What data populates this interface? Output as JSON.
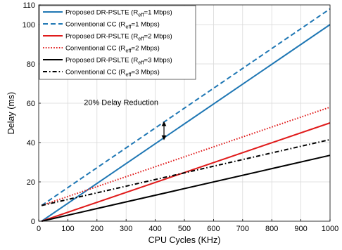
{
  "chart_data": {
    "type": "line",
    "xlabel": "CPU Cycles (KHz)",
    "ylabel": "Delay (ms)",
    "xlim": [
      0,
      1000
    ],
    "ylim": [
      0,
      110
    ],
    "xticks": [
      0,
      100,
      200,
      300,
      400,
      500,
      600,
      700,
      800,
      900,
      1000
    ],
    "yticks": [
      0,
      20,
      40,
      60,
      80,
      100,
      110
    ],
    "grid": true,
    "legend_position": "top-left",
    "series": [
      {
        "name": "Proposed DR-PSLTE (R_eff=1 Mbps)",
        "legend_main": "Proposed DR-PSLTE (R",
        "legend_sub": "eff",
        "legend_tail": "=1 Mbps)",
        "color": "#1f77b4",
        "dash": "solid",
        "x": [
          10,
          1000
        ],
        "y": [
          0,
          100
        ]
      },
      {
        "name": "Conventional CC (R_eff=1 Mbps)",
        "legend_main": "Conventional CC (R",
        "legend_sub": "eff",
        "legend_tail": "=1 Mbps)",
        "color": "#1f77b4",
        "dash": "dashed",
        "x": [
          10,
          1000
        ],
        "y": [
          8,
          108
        ]
      },
      {
        "name": "Proposed DR-PSLTE (R_eff=2 Mbps)",
        "legend_main": "Proposed DR-PSLTE (R",
        "legend_sub": "eff",
        "legend_tail": "=2 Mbps)",
        "color": "#e01b1b",
        "dash": "solid",
        "x": [
          10,
          1000
        ],
        "y": [
          0,
          50
        ]
      },
      {
        "name": "Conventional CC (R_eff=2 Mbps)",
        "legend_main": "Conventional CC (R",
        "legend_sub": "eff",
        "legend_tail": "=2 Mbps)",
        "color": "#e01b1b",
        "dash": "dotted",
        "x": [
          10,
          1000
        ],
        "y": [
          8,
          58
        ]
      },
      {
        "name": "Proposed DR-PSLTE (R_eff=3 Mbps)",
        "legend_main": "Proposed DR-PSLTE (R",
        "legend_sub": "eff",
        "legend_tail": "=3 Mbps)",
        "color": "#000000",
        "dash": "solid",
        "x": [
          10,
          1000
        ],
        "y": [
          0,
          33.5
        ]
      },
      {
        "name": "Conventional CC (R_eff=3 Mbps)",
        "legend_main": "Conventional CC (R",
        "legend_sub": "eff",
        "legend_tail": "=3 Mbps)",
        "color": "#000000",
        "dash": "dashdot",
        "x": [
          10,
          1000
        ],
        "y": [
          8,
          41.5
        ]
      }
    ],
    "annotations": [
      {
        "text": "20% Delay Reduction",
        "x": 430,
        "y": 52,
        "arrow_x": 430,
        "arrow_y_top": 51,
        "arrow_y_bottom": 41
      }
    ]
  }
}
